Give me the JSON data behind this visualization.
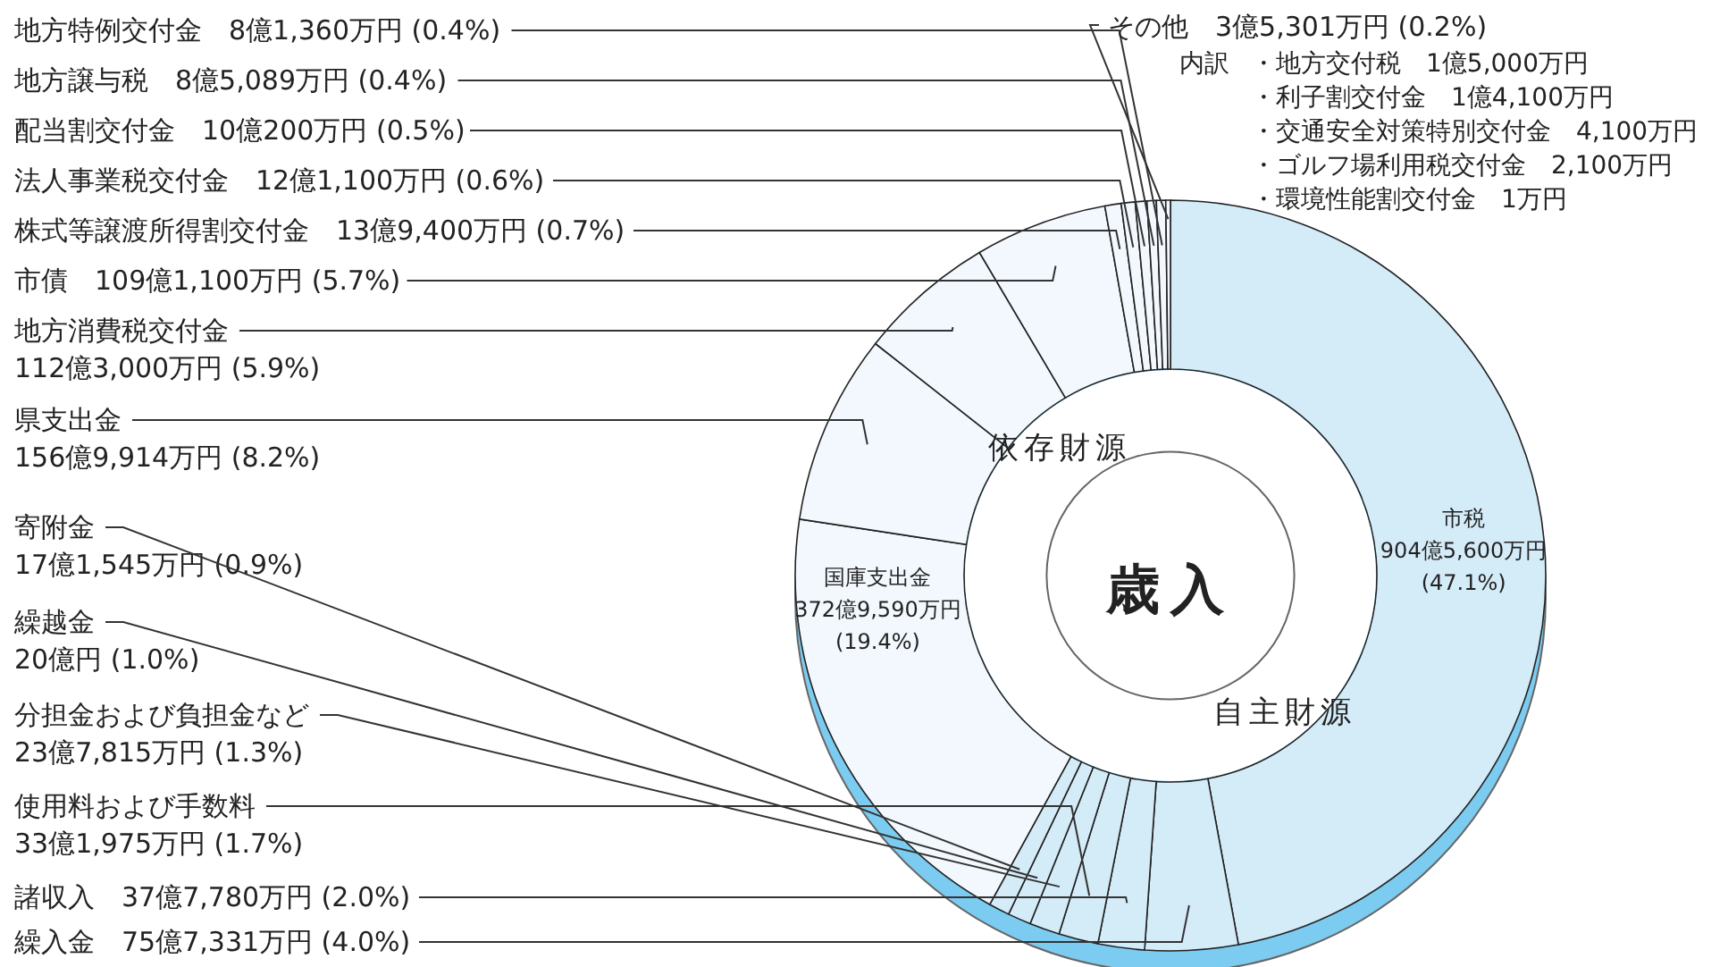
{
  "chart_data": {
    "type": "donut",
    "title": "歳入",
    "categories": [
      "市税",
      "繰入金",
      "諸収入",
      "使用料および手数料",
      "分担金および負担金など",
      "繰越金",
      "寄附金",
      "国庫支出金",
      "県支出金",
      "地方消費税交付金",
      "市債",
      "株式等譲渡所得割交付金",
      "法人事業税交付金",
      "配当割交付金",
      "地方譲与税",
      "地方特例交付金",
      "その他"
    ],
    "values": [
      47.1,
      4.0,
      2.0,
      1.7,
      1.3,
      1.0,
      0.9,
      19.4,
      8.2,
      5.9,
      5.7,
      0.7,
      0.6,
      0.5,
      0.4,
      0.4,
      0.2
    ],
    "value_labels": [
      "904億5,600万円 (47.1%)",
      "75億7,331万円 (4.0%)",
      "37億7,780万円 (2.0%)",
      "33億1,975万円 (1.7%)",
      "23億7,815万円 (1.3%)",
      "20億円 (1.0%)",
      "17億1,545万円 (0.9%)",
      "372億9,590万円 (19.4%)",
      "156億9,914万円 (8.2%)",
      "112億3,000万円 (5.9%)",
      "109億1,100万円 (5.7%)",
      "13億9,400万円 (0.7%)",
      "12億1,100万円 (0.6%)",
      "10億200万円 (0.5%)",
      "8億5,089万円 (0.4%)",
      "8億1,360万円 (0.4%)",
      "3億5,301万円 (0.2%)"
    ],
    "colors": [
      "#d4ebf8",
      "#d4ebf8",
      "#d4ebf8",
      "#d4ebf8",
      "#d4ebf8",
      "#d4ebf8",
      "#d4ebf8",
      "#f2f8fd",
      "#f2f8fd",
      "#f2f8fd",
      "#f2f8fd",
      "#f2f8fd",
      "#f2f8fd",
      "#f2f8fd",
      "#f2f8fd",
      "#f2f8fd",
      "#f2f8fd"
    ],
    "annotations": [
      "内訳",
      "・地方交付税　1億5,000万円",
      "・利子割交付金　1億4,100万円",
      "・交通安全対策特別交付金　4,100万円",
      "・ゴルフ場利用税交付金　2,100万円",
      "・環境性能割交付金　1万円",
      "依存財源",
      "自主財源"
    ]
  }
}
